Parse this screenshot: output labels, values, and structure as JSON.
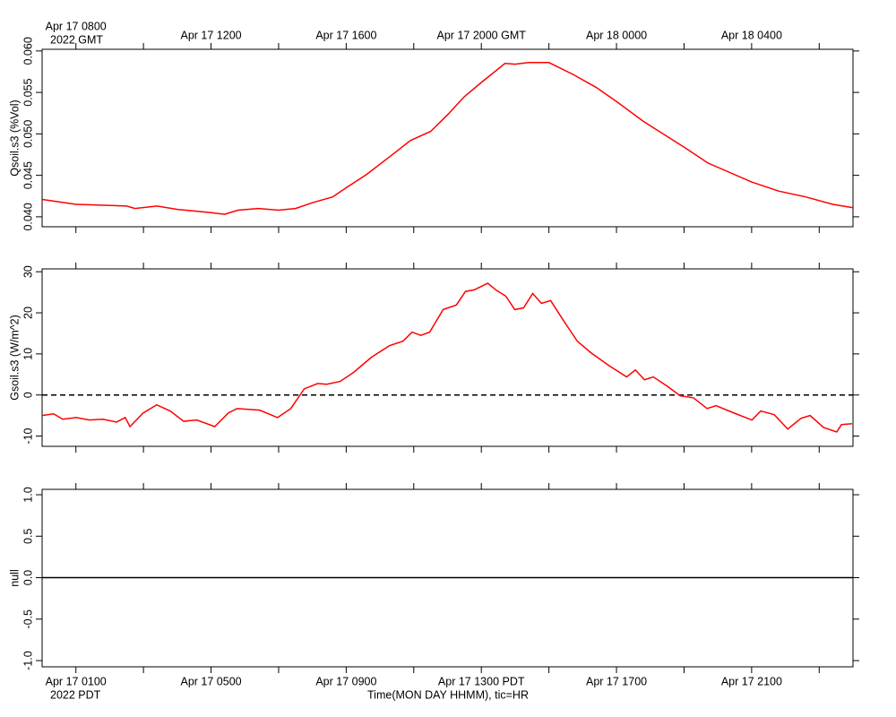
{
  "time_axis": {
    "xlim": [
      0,
      24
    ],
    "xticks": [
      {
        "value": 1,
        "label": "Apr 17 0100"
      },
      {
        "value": 5,
        "label": "Apr 17 0500"
      },
      {
        "value": 9,
        "label": "Apr 17 0900"
      },
      {
        "value": 13,
        "label": "Apr 17 1300 PDT"
      },
      {
        "value": 17,
        "label": "Apr 17 1700"
      },
      {
        "value": 21,
        "label": "Apr 17 2100"
      }
    ],
    "x2ticks": [
      {
        "value": 1,
        "label": "Apr 17 0800"
      },
      {
        "value": 5,
        "label": "Apr 17 1200"
      },
      {
        "value": 9,
        "label": "Apr 17 1600"
      },
      {
        "value": 13,
        "label": "Apr 17 2000 GMT"
      },
      {
        "value": 17,
        "label": "Apr 18 0000"
      },
      {
        "value": 21,
        "label": "Apr 18 0400"
      }
    ],
    "xminorticks": [
      3,
      7,
      11,
      15,
      19,
      23
    ],
    "x_year_label": "2022 PDT",
    "x2_year_label": "2022 GMT",
    "xlabel": "Time(MON DAY HHMM), tic=HR"
  },
  "chart_data": [
    {
      "type": "line",
      "ylabel": "Qsoil.s3 (%Vol)",
      "ylim": [
        0.0388,
        0.0602
      ],
      "yticks": [
        {
          "value": 0.04,
          "label": "0.040"
        },
        {
          "value": 0.045,
          "label": "0.045"
        },
        {
          "value": 0.05,
          "label": "0.050"
        },
        {
          "value": 0.055,
          "label": "0.055"
        },
        {
          "value": 0.06,
          "label": "0.060"
        }
      ],
      "series": [
        {
          "color": "#ff0000",
          "x": [
            0,
            1.0,
            2.5,
            2.75,
            3.4,
            4.0,
            5.0,
            5.4,
            5.8,
            6.4,
            7.0,
            7.5,
            8.0,
            8.6,
            9.0,
            9.6,
            10.4,
            10.9,
            11.5,
            12.0,
            12.5,
            13.0,
            13.7,
            14.0,
            14.4,
            15.0,
            15.7,
            16.4,
            17.0,
            17.8,
            19.0,
            19.7,
            21.0,
            21.8,
            22.6,
            23.4,
            24.0
          ],
          "values": [
            0.0421,
            0.0415,
            0.0413,
            0.041,
            0.0413,
            0.0409,
            0.0405,
            0.0403,
            0.0408,
            0.041,
            0.0408,
            0.041,
            0.0417,
            0.0424,
            0.0435,
            0.0451,
            0.0476,
            0.0492,
            0.0503,
            0.0523,
            0.0545,
            0.0562,
            0.0585,
            0.0584,
            0.0586,
            0.0586,
            0.0572,
            0.0556,
            0.0539,
            0.0515,
            0.0484,
            0.0465,
            0.0442,
            0.0431,
            0.0424,
            0.0415,
            0.0411
          ]
        }
      ]
    },
    {
      "type": "line",
      "ylabel": "Gsoil.s3 (W/m^2)",
      "ylim": [
        -12.5,
        30.7
      ],
      "yticks": [
        -10,
        0,
        10,
        20,
        30
      ],
      "hline": 0,
      "hline_style": "dashed",
      "series": [
        {
          "color": "#ff0000",
          "x": [
            0,
            0.34,
            0.61,
            1.01,
            1.4,
            1.8,
            2.2,
            2.46,
            2.6,
            2.99,
            3.39,
            3.79,
            4.19,
            4.58,
            5.11,
            5.51,
            5.77,
            6.44,
            6.97,
            7.36,
            7.76,
            8.16,
            8.42,
            8.82,
            9.22,
            9.75,
            10.28,
            10.68,
            10.95,
            11.21,
            11.47,
            11.87,
            12.26,
            12.53,
            12.79,
            13.19,
            13.46,
            13.72,
            13.99,
            14.25,
            14.52,
            14.78,
            15.05,
            15.44,
            15.84,
            16.24,
            16.77,
            17.3,
            17.56,
            17.83,
            18.09,
            18.49,
            18.89,
            19.28,
            19.68,
            19.95,
            20.48,
            21.01,
            21.27,
            21.67,
            22.07,
            22.46,
            22.73,
            23.13,
            23.52,
            23.66,
            23.97
          ],
          "values": [
            -5.0,
            -4.6,
            -5.9,
            -5.5,
            -6.1,
            -5.9,
            -6.6,
            -5.5,
            -7.7,
            -4.4,
            -2.4,
            -3.9,
            -6.4,
            -6.1,
            -7.7,
            -4.4,
            -3.3,
            -3.7,
            -5.5,
            -3.3,
            1.5,
            2.8,
            2.6,
            3.3,
            5.5,
            9.2,
            12.0,
            13.1,
            15.3,
            14.5,
            15.3,
            20.8,
            21.9,
            25.2,
            25.6,
            27.2,
            25.4,
            24.1,
            20.8,
            21.2,
            24.7,
            22.3,
            23.0,
            18.0,
            13.1,
            10.3,
            7.2,
            4.4,
            6.1,
            3.7,
            4.4,
            2.2,
            -0.2,
            -0.7,
            -3.3,
            -2.6,
            -4.4,
            -6.1,
            -3.9,
            -4.8,
            -8.3,
            -5.7,
            -5.0,
            -7.9,
            -9.0,
            -7.2,
            -7.0
          ]
        }
      ]
    },
    {
      "type": "line",
      "ylabel": "null",
      "ylim": [
        -1.075,
        1.065
      ],
      "yticks": [
        {
          "value": -1,
          "label": "-1.0"
        },
        {
          "value": -0.5,
          "label": "-0.5"
        },
        {
          "value": 0,
          "label": "0.0"
        },
        {
          "value": 0.5,
          "label": "0.5"
        },
        {
          "value": 1,
          "label": "1.0"
        }
      ],
      "hline": 0,
      "hline_style": "solid",
      "series": []
    }
  ]
}
